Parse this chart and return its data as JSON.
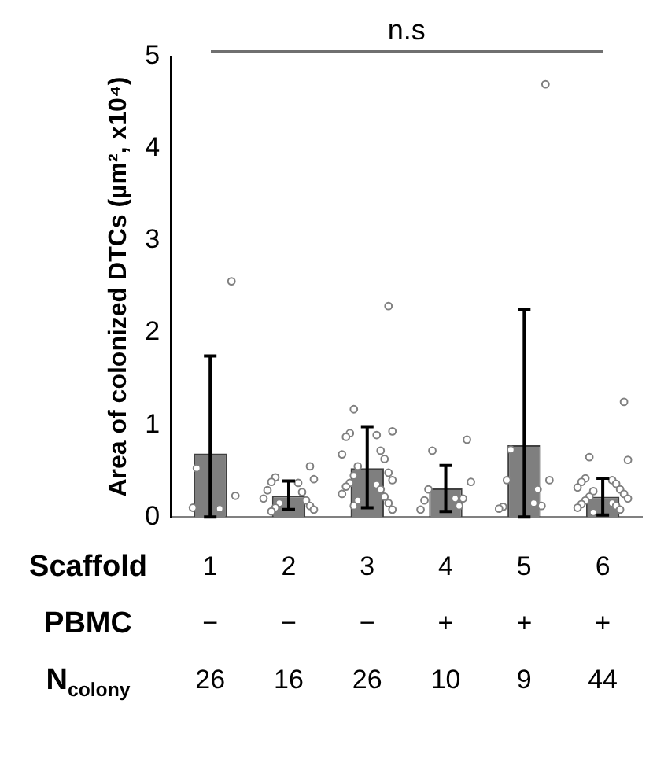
{
  "chart_data": {
    "type": "bar",
    "xlabel": "Scaffold",
    "ylabel": "Area of colonized DTCs (µm², x10⁴)",
    "categories": [
      "1",
      "2",
      "3",
      "4",
      "5",
      "6"
    ],
    "series": [
      {
        "color": "#7f7f7f",
        "values": [
          0.69,
          0.23,
          0.53,
          0.31,
          0.78,
          0.22
        ],
        "errors": [
          [
            0,
            1.75
          ],
          [
            0.08,
            0.39
          ],
          [
            0.1,
            0.98
          ],
          [
            0.06,
            0.56
          ],
          [
            0,
            2.25
          ],
          [
            0.02,
            0.42
          ]
        ]
      },
      {
        "type": "scatter",
        "color": "#808080",
        "x": [
          "1",
          "1",
          "1",
          "1",
          "1",
          "2",
          "2",
          "2",
          "2",
          "2",
          "2",
          "2",
          "2",
          "2",
          "2",
          "2",
          "2",
          "2",
          "2",
          "3",
          "3",
          "3",
          "3",
          "3",
          "3",
          "3",
          "3",
          "3",
          "3",
          "3",
          "3",
          "3",
          "3",
          "3",
          "3",
          "3",
          "3",
          "3",
          "3",
          "3",
          "3",
          "3",
          "4",
          "4",
          "4",
          "4",
          "4",
          "4",
          "4",
          "4",
          "4",
          "5",
          "5",
          "5",
          "5",
          "5",
          "5",
          "5",
          "5",
          "5",
          "6",
          "6",
          "6",
          "6",
          "6",
          "6",
          "6",
          "6",
          "6",
          "6",
          "6",
          "6",
          "6",
          "6",
          "6",
          "6",
          "6",
          "6",
          "6",
          "6"
        ],
        "values": [
          2.56,
          0.53,
          0.23,
          0.1,
          0.09,
          0.55,
          0.43,
          0.41,
          0.38,
          0.37,
          0.29,
          0.27,
          0.2,
          0.18,
          0.15,
          0.12,
          0.1,
          0.08,
          0.06,
          2.29,
          1.17,
          0.93,
          0.91,
          0.89,
          0.87,
          0.72,
          0.68,
          0.63,
          0.55,
          0.48,
          0.45,
          0.4,
          0.37,
          0.35,
          0.33,
          0.3,
          0.25,
          0.22,
          0.18,
          0.15,
          0.12,
          0.08,
          0.84,
          0.72,
          0.38,
          0.3,
          0.2,
          0.18,
          0.12,
          0.08,
          0.2,
          4.7,
          0.73,
          0.4,
          0.4,
          0.15,
          0.11,
          0.3,
          0.09,
          0.12,
          1.25,
          0.65,
          0.62,
          0.42,
          0.4,
          0.38,
          0.36,
          0.32,
          0.3,
          0.28,
          0.25,
          0.22,
          0.2,
          0.18,
          0.15,
          0.14,
          0.12,
          0.1,
          0.08,
          0.05
        ]
      }
    ],
    "ylim": [
      0,
      5
    ],
    "yticks": [
      0,
      1,
      2,
      3,
      4,
      5
    ],
    "grid": false,
    "legend": false,
    "marker": "circle",
    "annotations": [
      "n.s",
      "PBMC",
      "−",
      "−",
      "−",
      "+",
      "+",
      "+",
      "N$_{colony}$",
      "26",
      "16",
      "26",
      "10",
      "9",
      "44"
    ]
  }
}
